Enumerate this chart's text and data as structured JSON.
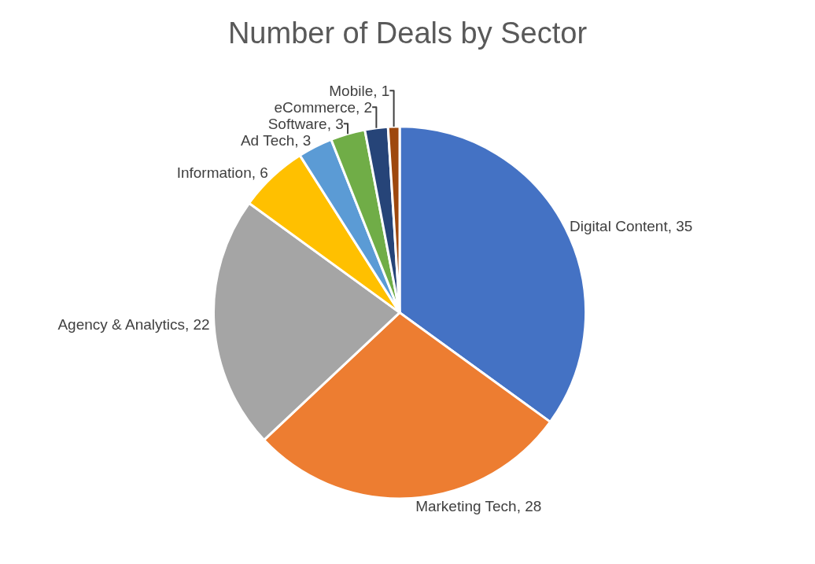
{
  "chart_data": {
    "type": "pie",
    "title": "Number of Deals by Sector",
    "categories": [
      "Digital Content",
      "Marketing Tech",
      "Agency & Analytics",
      "Information",
      "Ad Tech",
      "Software",
      "eCommerce",
      "Mobile"
    ],
    "values": [
      35,
      28,
      22,
      6,
      3,
      3,
      2,
      1
    ],
    "colors": [
      "#4472c4",
      "#ed7d31",
      "#a5a5a5",
      "#ffc000",
      "#5b9bd5",
      "#70ad47",
      "#264478",
      "#9e480e"
    ],
    "value_labels": [
      ", 35",
      ", 28",
      ", 22",
      ", 6",
      ", 3",
      ", 3",
      ", 2",
      ", 1"
    ],
    "legend": false
  }
}
